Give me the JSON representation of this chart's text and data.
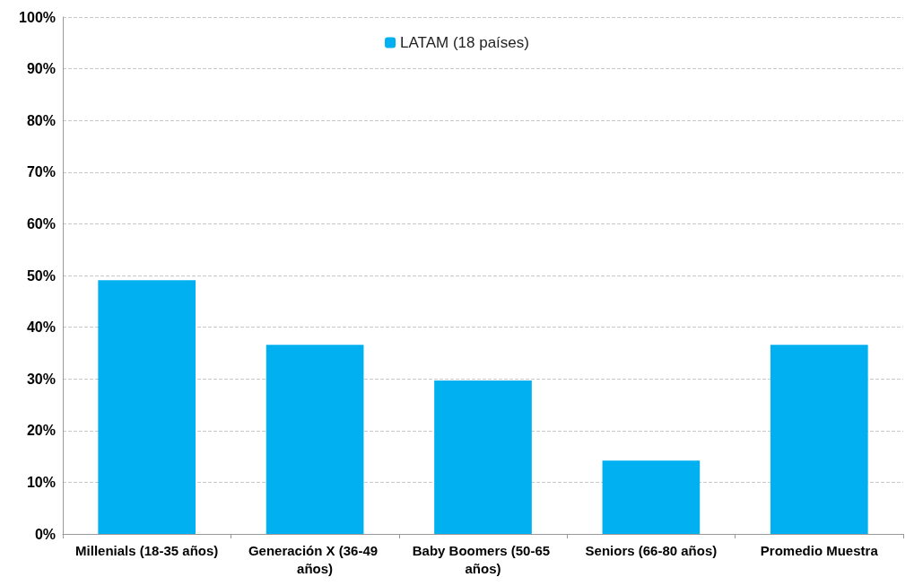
{
  "chart_data": {
    "type": "bar",
    "categories": [
      "Millenials (18-35 años)",
      "Generación X (36-49 años)",
      "Baby Boomers (50-65 años)",
      "Seniors (66-80 años)",
      "Promedio Muestra"
    ],
    "series": [
      {
        "name": "LATAM (18 países)",
        "color": "#00b0f0",
        "values": [
          49.1,
          36.6,
          29.7,
          14.2,
          36.6
        ]
      }
    ],
    "ylim": [
      0,
      100
    ],
    "yticks": [
      {
        "value": 0,
        "label": "0%"
      },
      {
        "value": 10,
        "label": "10%"
      },
      {
        "value": 20,
        "label": "20%"
      },
      {
        "value": 30,
        "label": "30%"
      },
      {
        "value": 40,
        "label": "40%"
      },
      {
        "value": 50,
        "label": "50%"
      },
      {
        "value": 60,
        "label": "60%"
      },
      {
        "value": 70,
        "label": "70%"
      },
      {
        "value": 80,
        "label": "80%"
      },
      {
        "value": 90,
        "label": "90%"
      },
      {
        "value": 100,
        "label": "100%"
      }
    ],
    "grid": "y",
    "legend": "top"
  }
}
